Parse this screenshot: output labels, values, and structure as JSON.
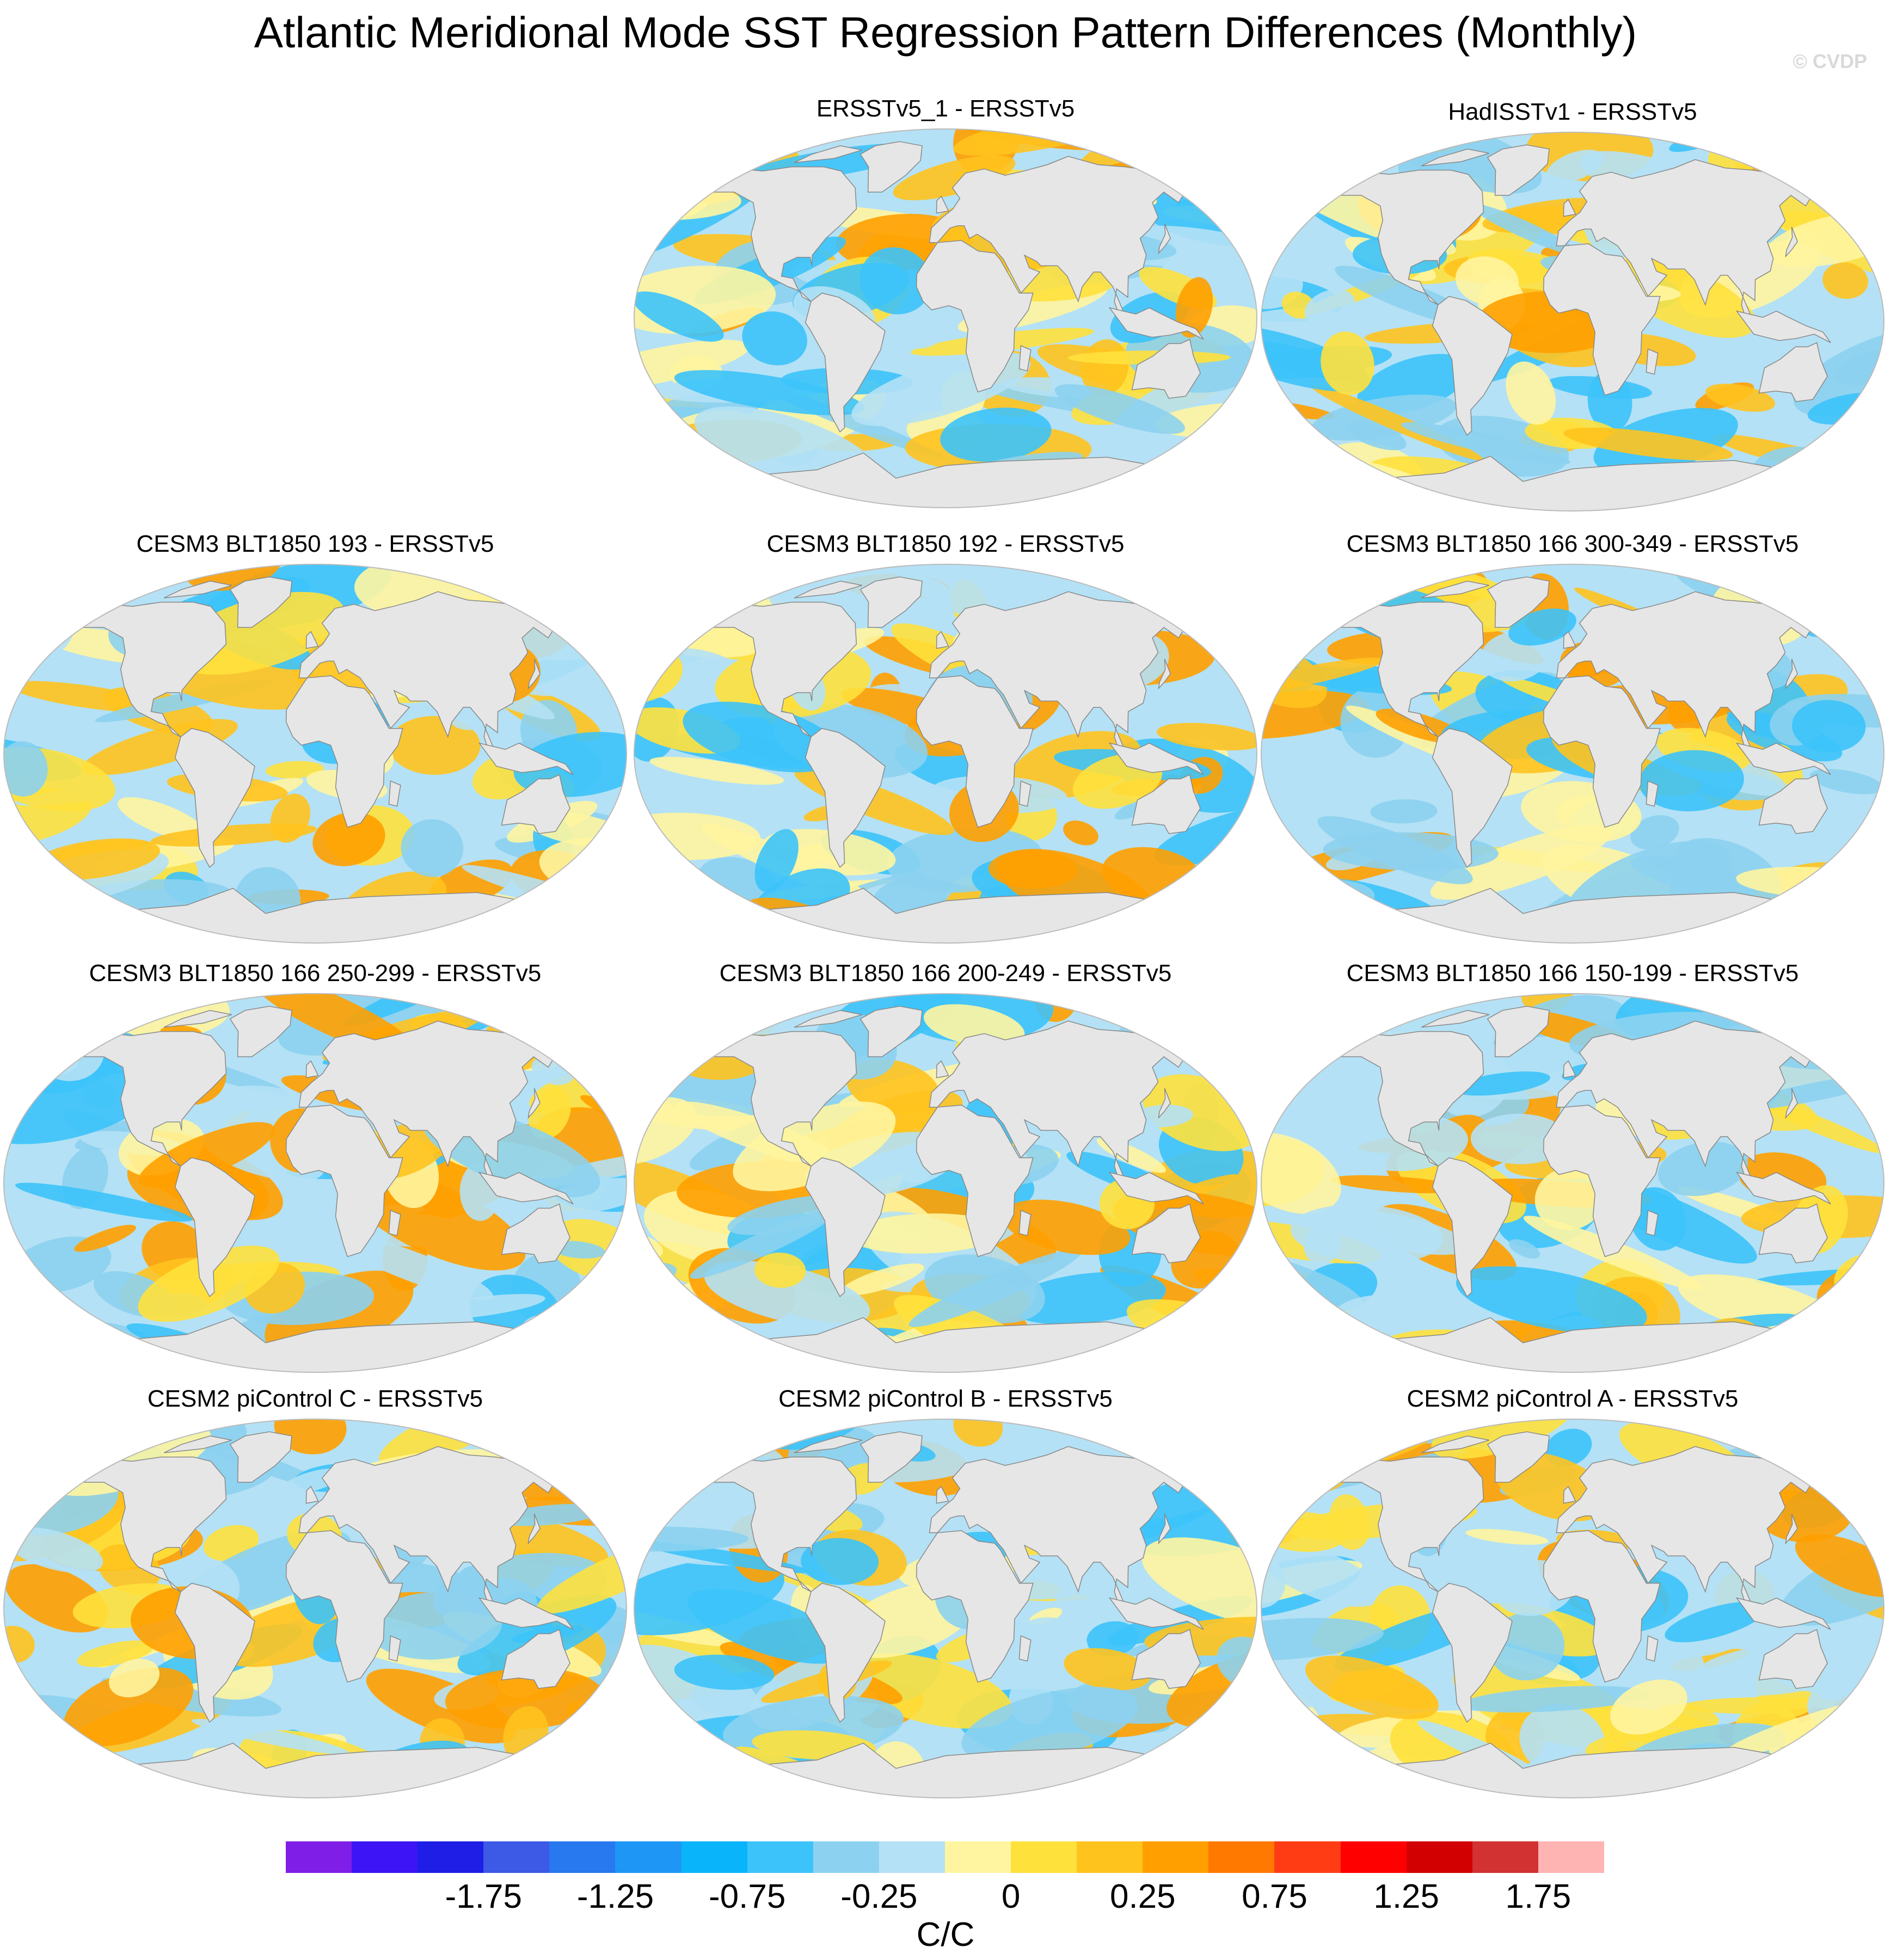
{
  "title": "Atlantic Meridional Mode SST Regression Pattern Differences (Monthly)",
  "credit": "© CVDP",
  "panels": [
    {
      "id": "p1",
      "title": "ERSSTv5_1 - ERSSTv5",
      "seed": 11
    },
    {
      "id": "p2",
      "title": "HadISSTv1 - ERSSTv5",
      "seed": 23
    },
    {
      "id": "p3",
      "title": "CESM3 BLT1850 193 - ERSSTv5",
      "seed": 37
    },
    {
      "id": "p4",
      "title": "CESM3 BLT1850 192 - ERSSTv5",
      "seed": 41
    },
    {
      "id": "p5",
      "title": "CESM3 BLT1850 166 300-349 - ERSSTv5",
      "seed": 53
    },
    {
      "id": "p6",
      "title": "CESM3 BLT1850 166 250-299 - ERSSTv5",
      "seed": 61
    },
    {
      "id": "p7",
      "title": "CESM3 BLT1850 166 200-249 - ERSSTv5",
      "seed": 73
    },
    {
      "id": "p8",
      "title": "CESM3 BLT1850 166 150-199 - ERSSTv5",
      "seed": 89
    },
    {
      "id": "p9",
      "title": "CESM2 piControl C - ERSSTv5",
      "seed": 97
    },
    {
      "id": "p10",
      "title": "CESM2 piControl B - ERSSTv5",
      "seed": 103
    },
    {
      "id": "p11",
      "title": "CESM2 piControl A - ERSSTv5",
      "seed": 131
    }
  ],
  "colorbar": {
    "colors": [
      "#7f1ee6",
      "#3c14f5",
      "#1e1ee6",
      "#3c5ae6",
      "#2878f0",
      "#1e96f5",
      "#0ab4fa",
      "#3cc3fa",
      "#8cd2f0",
      "#b4e1f5",
      "#fff5a0",
      "#ffe13c",
      "#ffc31e",
      "#ffa000",
      "#ff7800",
      "#ff3c14",
      "#ff0000",
      "#d20000",
      "#d23232",
      "#ffb4b4"
    ],
    "labels": [
      "-1.75",
      "-1.25",
      "-0.75",
      "-0.25",
      "0",
      "0.25",
      "0.75",
      "1.25",
      "1.75"
    ],
    "units": "C/C"
  }
}
